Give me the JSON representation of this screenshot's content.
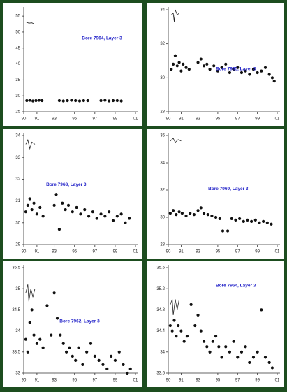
{
  "chart_data": [
    {
      "type": "scatter",
      "title": "Bore 7964, Layer 3",
      "ylim": [
        25,
        57
      ],
      "yticks": [
        25,
        30,
        35,
        40,
        45,
        50,
        55
      ],
      "xlim": [
        1990,
        2001
      ],
      "xticks": [
        {
          "value": 1990,
          "label": "90"
        },
        {
          "value": 1991.3,
          "label": "91"
        },
        {
          "value": 1993,
          "label": "93"
        },
        {
          "value": 1995,
          "label": "95"
        },
        {
          "value": 1997,
          "label": "97"
        },
        {
          "value": 1999,
          "label": "99"
        },
        {
          "value": 2001,
          "label": "01"
        }
      ],
      "trace": {
        "x": [
          1990.2,
          1990.5,
          1990.8,
          1991.0
        ],
        "values": [
          53.2,
          52.8,
          52.9,
          52.6
        ]
      },
      "points": {
        "x": [
          1990.3,
          1990.6,
          1990.9,
          1991.2,
          1991.5,
          1991.8,
          1993.5,
          1993.9,
          1994.3,
          1994.7,
          1995.1,
          1995.5,
          1995.9,
          1996.3,
          1997.6,
          1998.0,
          1998.4,
          1998.8,
          1999.2,
          1999.6
        ],
        "values": [
          28.5,
          28.6,
          28.4,
          28.5,
          28.6,
          28.5,
          28.5,
          28.4,
          28.5,
          28.6,
          28.5,
          28.4,
          28.5,
          28.5,
          28.5,
          28.6,
          28.4,
          28.5,
          28.5,
          28.4
        ]
      }
    },
    {
      "type": "scatter",
      "title": "Bore 7965, Layer 3",
      "ylim": [
        28,
        34
      ],
      "yticks": [
        28,
        30,
        32,
        34
      ],
      "xlim": [
        1990,
        2001
      ],
      "xticks": [
        {
          "value": 1990,
          "label": "90"
        },
        {
          "value": 1991.3,
          "label": "91"
        },
        {
          "value": 1993,
          "label": "93"
        },
        {
          "value": 1995,
          "label": "95"
        },
        {
          "value": 1997,
          "label": "97"
        },
        {
          "value": 1999,
          "label": "99"
        },
        {
          "value": 2001,
          "label": "01"
        }
      ],
      "trace": {
        "x": [
          1990.3,
          1990.5,
          1990.6,
          1990.7,
          1990.9,
          1991.1
        ],
        "values": [
          33.7,
          33.8,
          33.3,
          34.0,
          33.7,
          33.8
        ]
      },
      "points": {
        "x": [
          1990.3,
          1990.5,
          1990.7,
          1990.9,
          1991.1,
          1991.3,
          1991.5,
          1991.8,
          1992.1,
          1993.0,
          1993.3,
          1993.6,
          1993.9,
          1994.2,
          1994.6,
          1995.0,
          1995.4,
          1995.8,
          1996.2,
          1996.6,
          1997.0,
          1997.4,
          1997.8,
          1998.2,
          1998.6,
          1999.0,
          1999.4,
          1999.8,
          2000.2,
          2000.5,
          2000.7
        ],
        "values": [
          30.5,
          30.8,
          31.3,
          30.7,
          30.9,
          30.4,
          30.8,
          30.6,
          30.5,
          30.9,
          31.1,
          30.7,
          30.8,
          30.5,
          30.7,
          30.4,
          30.6,
          30.8,
          30.3,
          30.5,
          30.6,
          30.3,
          30.4,
          30.2,
          30.5,
          30.3,
          30.4,
          30.6,
          30.2,
          30.0,
          29.8
        ]
      }
    },
    {
      "type": "scatter",
      "title": "Bore 7968, Layer 3",
      "ylim": [
        29,
        34
      ],
      "yticks": [
        29,
        30,
        31,
        32,
        33,
        34
      ],
      "xlim": [
        1990,
        2001
      ],
      "xticks": [
        {
          "value": 1990,
          "label": "90"
        },
        {
          "value": 1991.3,
          "label": "91"
        },
        {
          "value": 1993,
          "label": "93"
        },
        {
          "value": 1995,
          "label": "95"
        },
        {
          "value": 1997,
          "label": "97"
        },
        {
          "value": 1999,
          "label": "99"
        },
        {
          "value": 2001,
          "label": "01"
        }
      ],
      "trace": {
        "x": [
          1990.2,
          1990.4,
          1990.6,
          1990.8,
          1991.1
        ],
        "values": [
          33.6,
          33.8,
          33.4,
          33.7,
          33.6
        ]
      },
      "points": {
        "x": [
          1990.2,
          1990.4,
          1990.6,
          1990.8,
          1991.0,
          1991.3,
          1991.6,
          1991.9,
          1993.0,
          1993.2,
          1993.5,
          1993.8,
          1994.1,
          1994.4,
          1994.8,
          1995.2,
          1995.6,
          1996.0,
          1996.4,
          1996.8,
          1997.2,
          1997.6,
          1998.0,
          1998.4,
          1998.8,
          1999.2,
          1999.6,
          2000.0,
          2000.4
        ],
        "values": [
          30.5,
          30.8,
          31.1,
          30.6,
          30.9,
          30.4,
          30.7,
          30.3,
          30.8,
          31.3,
          29.7,
          30.9,
          30.6,
          30.8,
          30.5,
          30.7,
          30.4,
          30.6,
          30.3,
          30.5,
          30.2,
          30.4,
          30.3,
          30.5,
          30.1,
          30.3,
          30.4,
          30.0,
          30.2
        ]
      }
    },
    {
      "type": "scatter",
      "title": "Bore 7969, Layer 3",
      "ylim": [
        28,
        36
      ],
      "yticks": [
        28,
        30,
        32,
        34,
        36
      ],
      "xlim": [
        1990,
        2001
      ],
      "xticks": [
        {
          "value": 1990,
          "label": "90"
        },
        {
          "value": 1991.3,
          "label": "91"
        },
        {
          "value": 1993,
          "label": "93"
        },
        {
          "value": 1995,
          "label": "95"
        },
        {
          "value": 1997,
          "label": "97"
        },
        {
          "value": 1999,
          "label": "99"
        },
        {
          "value": 2001,
          "label": "01"
        }
      ],
      "trace": {
        "x": [
          1990.2,
          1990.5,
          1990.7,
          1991.0,
          1991.3
        ],
        "values": [
          35.6,
          35.8,
          35.5,
          35.7,
          35.6
        ]
      },
      "points": {
        "x": [
          1990.2,
          1990.5,
          1990.8,
          1991.1,
          1991.4,
          1991.8,
          1992.2,
          1992.6,
          1993.0,
          1993.3,
          1993.6,
          1994.0,
          1994.4,
          1994.8,
          1995.2,
          1995.5,
          1996.0,
          1996.4,
          1996.8,
          1997.2,
          1997.6,
          1998.0,
          1998.4,
          1998.8,
          1999.2,
          1999.6,
          2000.0,
          2000.4
        ],
        "values": [
          30.3,
          30.5,
          30.2,
          30.4,
          30.3,
          30.1,
          30.3,
          30.2,
          30.5,
          30.7,
          30.3,
          30.2,
          30.1,
          30.0,
          29.9,
          29.0,
          29.0,
          29.9,
          29.8,
          29.9,
          29.7,
          29.8,
          29.7,
          29.8,
          29.6,
          29.7,
          29.6,
          29.5
        ]
      }
    },
    {
      "type": "scatter",
      "title": "Bore 7962, Layer 3",
      "ylim": [
        33,
        35.5
      ],
      "yticks": [
        33,
        33.5,
        34,
        34.5,
        35,
        35.5
      ],
      "xlim": [
        1990,
        2001
      ],
      "xticks": [
        {
          "value": 1990,
          "label": "90"
        },
        {
          "value": 1991.3,
          "label": "91"
        },
        {
          "value": 1993,
          "label": "93"
        },
        {
          "value": 1995,
          "label": "95"
        },
        {
          "value": 1997,
          "label": "97"
        },
        {
          "value": 1999,
          "label": "99"
        },
        {
          "value": 2001,
          "label": "01"
        }
      ],
      "trace": {
        "x": [
          1990.2,
          1990.4,
          1990.5,
          1990.7,
          1990.9,
          1991.1
        ],
        "values": [
          34.9,
          35.1,
          34.7,
          35.0,
          34.8,
          35.0
        ]
      },
      "points": {
        "x": [
          1990.2,
          1990.4,
          1990.6,
          1990.8,
          1991.0,
          1991.3,
          1991.6,
          1991.9,
          1992.3,
          1992.7,
          1993.0,
          1993.3,
          1993.6,
          1993.9,
          1994.2,
          1994.5,
          1994.8,
          1995.1,
          1995.4,
          1995.8,
          1996.2,
          1996.6,
          1997.0,
          1997.4,
          1997.8,
          1998.2,
          1998.6,
          1999.0,
          1999.4,
          1999.8,
          2000.2,
          2000.5
        ],
        "values": [
          33.8,
          33.5,
          34.2,
          34.5,
          33.9,
          33.7,
          33.8,
          33.6,
          34.6,
          33.9,
          34.9,
          34.3,
          33.9,
          33.7,
          33.5,
          33.6,
          33.4,
          33.3,
          33.6,
          33.2,
          33.5,
          33.7,
          33.4,
          33.3,
          33.2,
          33.1,
          33.4,
          33.3,
          33.5,
          33.2,
          33.0,
          33.1
        ]
      }
    },
    {
      "type": "scatter",
      "title": "Bore 7964, Layer 3",
      "ylim": [
        33.6,
        35.6
      ],
      "yticks": [
        33.6,
        34,
        34.4,
        34.8,
        35.2,
        35.6
      ],
      "xlim": [
        1990,
        2001
      ],
      "xticks": [
        {
          "value": 1990,
          "label": "90"
        },
        {
          "value": 1991.3,
          "label": "91"
        },
        {
          "value": 1993,
          "label": "93"
        },
        {
          "value": 1995,
          "label": "95"
        },
        {
          "value": 1997,
          "label": "97"
        },
        {
          "value": 1999,
          "label": "99"
        },
        {
          "value": 2001,
          "label": "01"
        }
      ],
      "trace": {
        "x": [
          1990.2,
          1990.4,
          1990.5,
          1990.7,
          1990.9,
          1991.1
        ],
        "values": [
          34.9,
          35.0,
          34.7,
          35.0,
          34.8,
          35.0
        ]
      },
      "points": {
        "x": [
          1990.2,
          1990.4,
          1990.6,
          1990.8,
          1991.0,
          1991.3,
          1991.6,
          1991.9,
          1992.3,
          1992.7,
          1993.0,
          1993.3,
          1993.6,
          1993.9,
          1994.2,
          1994.5,
          1994.8,
          1995.1,
          1995.4,
          1995.8,
          1996.2,
          1996.6,
          1997.0,
          1997.4,
          1997.8,
          1998.2,
          1998.6,
          1999.0,
          1999.4,
          1999.8,
          2000.2,
          2000.5
        ],
        "values": [
          34.5,
          34.4,
          34.6,
          34.3,
          34.5,
          34.4,
          34.2,
          34.3,
          34.9,
          34.5,
          34.7,
          34.4,
          34.2,
          34.1,
          34.0,
          34.2,
          34.3,
          34.1,
          33.9,
          34.1,
          34.0,
          34.2,
          33.9,
          34.0,
          34.1,
          33.8,
          33.9,
          34.0,
          34.8,
          33.9,
          33.8,
          33.7
        ]
      }
    }
  ]
}
